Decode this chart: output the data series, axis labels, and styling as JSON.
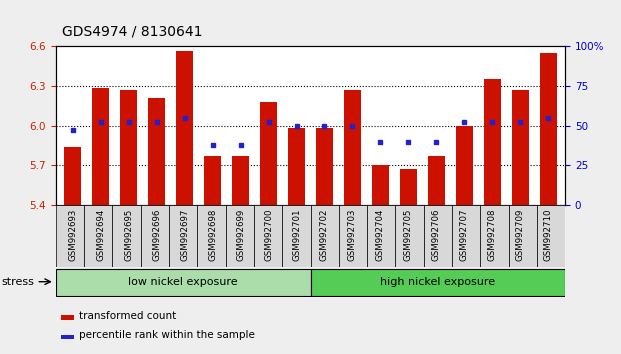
{
  "title": "GDS4974 / 8130641",
  "samples": [
    "GSM992693",
    "GSM992694",
    "GSM992695",
    "GSM992696",
    "GSM992697",
    "GSM992698",
    "GSM992699",
    "GSM992700",
    "GSM992701",
    "GSM992702",
    "GSM992703",
    "GSM992704",
    "GSM992705",
    "GSM992706",
    "GSM992707",
    "GSM992708",
    "GSM992709",
    "GSM992710"
  ],
  "transformed_count": [
    5.84,
    6.28,
    6.27,
    6.21,
    6.56,
    5.77,
    5.77,
    6.18,
    5.98,
    5.98,
    6.27,
    5.7,
    5.67,
    5.77,
    6.0,
    6.35,
    6.27,
    6.55
  ],
  "percentile_rank": [
    47,
    52,
    52,
    52,
    55,
    38,
    38,
    52,
    50,
    50,
    50,
    40,
    40,
    40,
    52,
    52,
    52,
    55
  ],
  "ylim_left": [
    5.4,
    6.6
  ],
  "ylim_right": [
    0,
    100
  ],
  "yticks_left": [
    5.4,
    5.7,
    6.0,
    6.3,
    6.6
  ],
  "yticks_right": [
    0,
    25,
    50,
    75,
    100
  ],
  "grid_values": [
    5.7,
    6.0,
    6.3
  ],
  "bar_color": "#cc1100",
  "dot_color": "#2222cc",
  "bar_bottom": 5.4,
  "group1_label": "low nickel exposure",
  "group2_label": "high nickel exposure",
  "group1_n": 9,
  "group2_n": 9,
  "stress_label": "stress",
  "group1_color": "#aaddaa",
  "group2_color": "#55cc55",
  "legend_bar_label": "transformed count",
  "legend_dot_label": "percentile rank within the sample",
  "bg_color": "#eeeeee",
  "plot_bg": "#ffffff",
  "title_fontsize": 10,
  "tick_fontsize": 7.5,
  "label_fontsize": 8
}
